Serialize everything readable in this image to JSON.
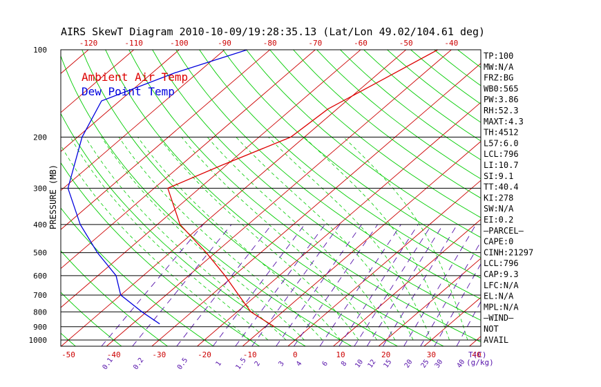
{
  "chart_data": {
    "type": "line",
    "title": "AIRS SkewT Diagram 2010-10-09/19:28:35.13 (Lat/Lon 49.02/104.61 deg)",
    "ylabel": "PRESSURE (MB)",
    "xlabel_bottom_unit": "T(C)",
    "mixing_ratio_unit": "(g/kg)",
    "legend": [
      "Ambient Air Temp",
      "Dew Point Temp"
    ],
    "pressure_levels": [
      100,
      200,
      300,
      400,
      500,
      600,
      700,
      800,
      900,
      1000
    ],
    "top_axis_ticks": [
      "-120",
      "-110",
      "-100",
      "-90",
      "-80",
      "-70",
      "-60",
      "-50",
      "-40"
    ],
    "bottom_axis_ticks": [
      "-50",
      "-40",
      "-30",
      "-20",
      "-10",
      "0",
      "10",
      "20",
      "30",
      "40"
    ],
    "mixing_ratio_labels": [
      "0.1",
      "0.2",
      "0.5",
      "1",
      "1.5",
      "2",
      "3",
      "4",
      "6",
      "8",
      "10",
      "12",
      "15",
      "20",
      "25",
      "30",
      "40"
    ],
    "ambient_temp": [
      {
        "p": 100,
        "t": -43
      },
      {
        "p": 130,
        "t": -48
      },
      {
        "p": 160,
        "t": -52
      },
      {
        "p": 200,
        "t": -53
      },
      {
        "p": 250,
        "t": -61
      },
      {
        "p": 300,
        "t": -67
      },
      {
        "p": 400,
        "t": -55
      },
      {
        "p": 500,
        "t": -42
      },
      {
        "p": 600,
        "t": -32
      },
      {
        "p": 700,
        "t": -24
      },
      {
        "p": 800,
        "t": -17
      },
      {
        "p": 900,
        "t": -8
      }
    ],
    "dew_point": [
      {
        "p": 100,
        "t": -85
      },
      {
        "p": 120,
        "t": -95
      },
      {
        "p": 150,
        "t": -104
      },
      {
        "p": 200,
        "t": -99
      },
      {
        "p": 300,
        "t": -89
      },
      {
        "p": 400,
        "t": -77
      },
      {
        "p": 500,
        "t": -66
      },
      {
        "p": 600,
        "t": -56
      },
      {
        "p": 700,
        "t": -50
      },
      {
        "p": 800,
        "t": -41
      },
      {
        "p": 880,
        "t": -34
      }
    ],
    "indices": [
      "TP:100",
      "MW:N/A",
      "FRZ:BG",
      "WB0:565",
      "PW:3.86",
      "RH:52.3",
      "MAXT:4.3",
      "TH:4512",
      "L57:6.0",
      "LCL:796",
      "LI:10.7",
      "SI:9.1",
      "TT:40.4",
      "KI:278",
      "SW:N/A",
      "EI:0.2",
      "—PARCEL—",
      "CAPE:0",
      "CINH:21297",
      "LCL:796",
      "CAP:9.3",
      "LFC:N/A",
      "EL:N/A",
      "MPL:N/A",
      "—WIND—",
      "NOT",
      "AVAIL"
    ],
    "colors": {
      "ambient": "#dd0000",
      "dewpoint": "#0000dd",
      "isotherm": "#cc0000",
      "adiabat": "#00cc00",
      "mixing_ratio": "#5511aa",
      "isobar": "#000000"
    }
  }
}
